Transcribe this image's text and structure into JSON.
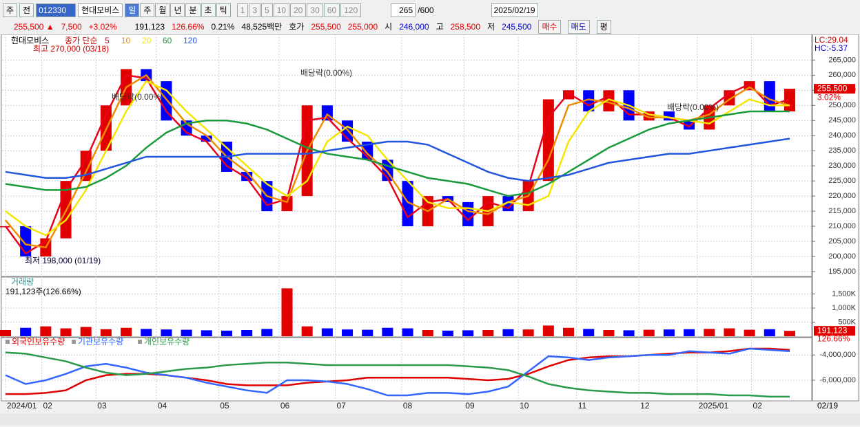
{
  "toolbar": {
    "market": "주",
    "range": "전",
    "code": "012330",
    "name": "현대모비스",
    "periods": [
      "일",
      "주",
      "월",
      "년",
      "분",
      "초",
      "틱"
    ],
    "ticks": [
      "1",
      "3",
      "5",
      "10",
      "20",
      "30",
      "60",
      "120"
    ],
    "count": "265",
    "count_max": "/600",
    "date": "2025/02/19"
  },
  "info": {
    "price": "255,500 ▲",
    "change": "7,500",
    "change_pct": "+3.02%",
    "volume": "191,123",
    "volume_pct": "126.66%",
    "turnover": "0.21%",
    "amount": "48,525백만",
    "ask_label": "호가",
    "ask": "255,500",
    "bid": "255,000",
    "open_label": "시",
    "open": "246,000",
    "high_label": "고",
    "high": "258,500",
    "low_label": "저",
    "low": "245,500",
    "buy": "매수",
    "sell": "매도",
    "avg": "평"
  },
  "chart_data": [
    {
      "type": "candlestick",
      "title": "현대모비스",
      "legend_title": "종가 단순",
      "close": [
        210000,
        200000,
        206000,
        225000,
        235000,
        250000,
        262000,
        258000,
        245000,
        240000,
        238000,
        228000,
        225000,
        215000,
        220000,
        250000,
        245000,
        238000,
        232000,
        225000,
        210000,
        220000,
        218000,
        210000,
        220000,
        215000,
        225000,
        252000,
        255000,
        248000,
        255000,
        245000,
        248000,
        245000,
        242000,
        250000,
        255000,
        258000,
        248000,
        255500
      ],
      "series": [
        {
          "name": "5",
          "color": "#e8001c",
          "values": [
            210000,
            201000,
            205000,
            222000,
            232000,
            247000,
            260000,
            259000,
            248000,
            241000,
            238000,
            230000,
            226000,
            217000,
            219000,
            245000,
            246000,
            239000,
            233000,
            226000,
            213000,
            218000,
            219000,
            212000,
            218000,
            216000,
            223000,
            246000,
            254000,
            250000,
            253000,
            247000,
            247000,
            246000,
            243000,
            249000,
            254000,
            257000,
            250000,
            252000
          ]
        },
        {
          "name": "10",
          "color": "#f08c00",
          "values": [
            212000,
            204000,
            203000,
            215000,
            228000,
            242000,
            256000,
            260000,
            252000,
            244000,
            240000,
            233000,
            228000,
            220000,
            218000,
            235000,
            247000,
            242000,
            234000,
            228000,
            218000,
            215000,
            219000,
            215000,
            214000,
            218000,
            220000,
            232000,
            250000,
            252000,
            251000,
            249000,
            246000,
            246000,
            245000,
            247000,
            252000,
            256000,
            252000,
            250000
          ]
        },
        {
          "name": "20",
          "color": "#f5e600",
          "values": [
            215000,
            210000,
            207000,
            212000,
            222000,
            235000,
            248000,
            258000,
            255000,
            248000,
            242000,
            236000,
            230000,
            224000,
            220000,
            225000,
            238000,
            243000,
            240000,
            232000,
            225000,
            218000,
            216000,
            216000,
            215000,
            218000,
            217000,
            220000,
            238000,
            248000,
            252000,
            250000,
            247000,
            246000,
            245000,
            244000,
            248000,
            252000,
            250000,
            250000
          ]
        },
        {
          "name": "60",
          "color": "#1a9a3a",
          "values": [
            224000,
            223000,
            222000,
            222000,
            223000,
            226000,
            230000,
            236000,
            241000,
            244000,
            245000,
            245000,
            244000,
            242000,
            239000,
            236000,
            234000,
            233000,
            232000,
            230000,
            228000,
            226000,
            225000,
            224000,
            222000,
            220000,
            221000,
            224000,
            228000,
            232000,
            236000,
            239000,
            242000,
            244000,
            245000,
            246000,
            247000,
            248000,
            248000,
            248000
          ]
        },
        {
          "name": "120",
          "color": "#2255dd",
          "values": [
            228000,
            227000,
            226000,
            226000,
            227000,
            229000,
            231000,
            233000,
            233000,
            233000,
            233000,
            233000,
            234000,
            234000,
            234000,
            234000,
            235000,
            236000,
            237000,
            238000,
            238000,
            237000,
            234000,
            231000,
            228000,
            226000,
            225000,
            226000,
            227000,
            229000,
            231000,
            232000,
            233000,
            234000,
            234000,
            235000,
            236000,
            237000,
            238000,
            239000
          ]
        }
      ],
      "up_color": "#e00000",
      "down_color": "#0000ff",
      "ylim": [
        193400,
        273500
      ],
      "yticks": [
        {
          "value": 195000,
          "label": "195,000"
        },
        {
          "value": 200000,
          "label": "200,000"
        },
        {
          "value": 205000,
          "label": "205,000"
        },
        {
          "value": 210000,
          "label": "210,000"
        },
        {
          "value": 215000,
          "label": "215,000"
        },
        {
          "value": 220000,
          "label": "220,000"
        },
        {
          "value": 225000,
          "label": "225,000"
        },
        {
          "value": 230000,
          "label": "230,000"
        },
        {
          "value": 235000,
          "label": "235,000"
        },
        {
          "value": 240000,
          "label": "240,000"
        },
        {
          "value": 245000,
          "label": "245,000"
        },
        {
          "value": 250000,
          "label": "250,000"
        },
        {
          "value": 255000,
          "label": "255,000"
        },
        {
          "value": 260000,
          "label": "260,000"
        },
        {
          "value": 265000,
          "label": "265,000"
        }
      ],
      "annotations": [
        "최고 270,000 (03/18)",
        "최저 198,000 (01/19)",
        "배당락(0.00%)",
        "배당락(0.00%)",
        "배당락(0.00%)"
      ],
      "lc": "LC:29.04",
      "hc": "HC:-5.37",
      "price_badge": "255,500",
      "change_badge": "3.02%",
      "grid": true
    },
    {
      "type": "bar",
      "title": "거래량",
      "subtitle": "191,123주(126.66%)",
      "values": [
        220000,
        300000,
        350000,
        280000,
        330000,
        250000,
        300000,
        260000,
        240000,
        230000,
        210000,
        200000,
        220000,
        260000,
        1700000,
        350000,
        280000,
        240000,
        230000,
        300000,
        280000,
        220000,
        200000,
        210000,
        220000,
        250000,
        240000,
        380000,
        300000,
        260000,
        220000,
        210000,
        230000,
        240000,
        250000,
        260000,
        280000,
        230000,
        250000,
        191123
      ],
      "ylim": [
        0,
        2050000
      ],
      "yticks": [
        {
          "value": 500000,
          "label": "500K"
        },
        {
          "value": 1000000,
          "label": "1,000K"
        },
        {
          "value": 1500000,
          "label": "1,500K"
        }
      ],
      "badge": "191,123",
      "badge_pct": "126.66%"
    },
    {
      "type": "line",
      "series": [
        {
          "name": "외국인보유수량",
          "color": "#e00000",
          "values": [
            -7100000,
            -7100000,
            -7000000,
            -6800000,
            -6000000,
            -5600000,
            -5500000,
            -5500000,
            -5600000,
            -5800000,
            -6000000,
            -6300000,
            -6400000,
            -6400000,
            -6400000,
            -6200000,
            -6100000,
            -6000000,
            -5800000,
            -5800000,
            -5800000,
            -5800000,
            -5800000,
            -5900000,
            -6000000,
            -5900000,
            -5500000,
            -4900000,
            -4400000,
            -4200000,
            -4100000,
            -4100000,
            -4000000,
            -3900000,
            -3800000,
            -3800000,
            -3700000,
            -3500000,
            -3500000,
            -3600000
          ]
        },
        {
          "name": "기관보유수량",
          "color": "#3366ff",
          "values": [
            -5600000,
            -6300000,
            -6000000,
            -5500000,
            -4900000,
            -4700000,
            -5000000,
            -5400000,
            -5600000,
            -5800000,
            -6200000,
            -6500000,
            -6800000,
            -7000000,
            -6000000,
            -6000000,
            -6100000,
            -6300000,
            -6700000,
            -7200000,
            -7200000,
            -7000000,
            -7000000,
            -7100000,
            -6900000,
            -6500000,
            -5300000,
            -4100000,
            -4200000,
            -4400000,
            -4200000,
            -4100000,
            -4000000,
            -4000000,
            -3700000,
            -3800000,
            -3900000,
            -3500000,
            -3600000,
            -3700000
          ]
        },
        {
          "name": "개인보유수량",
          "color": "#2a9a4a",
          "values": [
            -3800000,
            -3900000,
            -4200000,
            -4500000,
            -5000000,
            -5400000,
            -5600000,
            -5500000,
            -5300000,
            -5100000,
            -5000000,
            -4800000,
            -4700000,
            -4600000,
            -4600000,
            -4700000,
            -4800000,
            -4800000,
            -4800000,
            -4800000,
            -4800000,
            -4800000,
            -4800000,
            -4900000,
            -5000000,
            -5200000,
            -5700000,
            -6300000,
            -6600000,
            -6800000,
            -6900000,
            -7000000,
            -7000000,
            -7100000,
            -7100000,
            -7100000,
            -7200000,
            -7200000,
            -7300000,
            -7300000
          ]
        }
      ],
      "ylim": [
        -7580000,
        -2680000
      ],
      "yticks": [
        {
          "value": -4000000,
          "label": "-4,000,000"
        },
        {
          "value": -6000000,
          "label": "-6,000,000"
        }
      ],
      "xlim": [
        0,
        39
      ],
      "xticks": [
        {
          "value": 0,
          "label": "2024/01"
        },
        {
          "value": 1.8,
          "label": "02"
        },
        {
          "value": 4.5,
          "label": "03"
        },
        {
          "value": 7.5,
          "label": "04"
        },
        {
          "value": 10.6,
          "label": "05"
        },
        {
          "value": 13.6,
          "label": "06"
        },
        {
          "value": 16.4,
          "label": "07"
        },
        {
          "value": 19.7,
          "label": "08"
        },
        {
          "value": 22.8,
          "label": "09"
        },
        {
          "value": 25.5,
          "label": "10"
        },
        {
          "value": 28.4,
          "label": "11"
        },
        {
          "value": 31.5,
          "label": "12"
        },
        {
          "value": 34.4,
          "label": "2025/01"
        },
        {
          "value": 37.1,
          "label": "02"
        }
      ],
      "last_date": "02/19"
    }
  ]
}
